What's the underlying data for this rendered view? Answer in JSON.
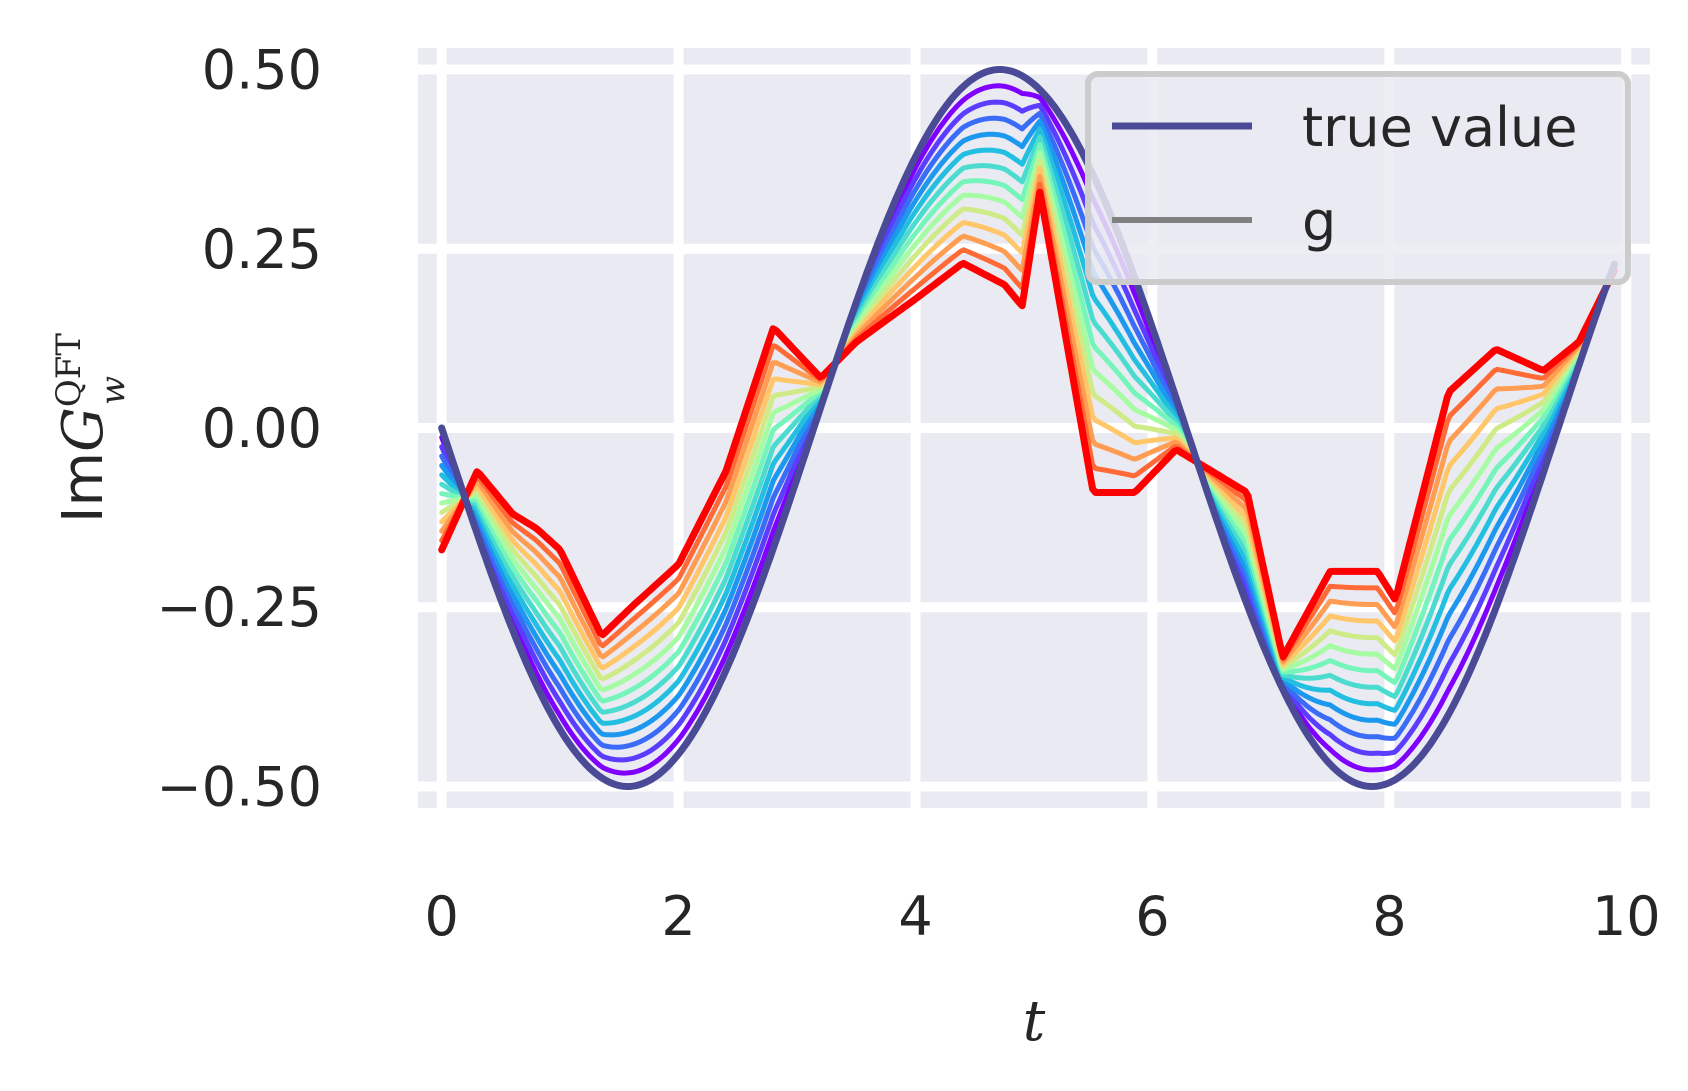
{
  "chart_data": {
    "type": "line",
    "xlabel": "t",
    "ylabel": {
      "prefix": "Im",
      "symbol": "G",
      "superscript": "QFT",
      "subscript": "w"
    },
    "xlim": [
      -0.2,
      10.2
    ],
    "ylim": [
      -0.53,
      0.53
    ],
    "xticks": [
      "0",
      "2",
      "4",
      "6",
      "8",
      "10"
    ],
    "xtick_values": [
      0,
      2,
      4,
      6,
      8,
      10
    ],
    "yticks": [
      "0.50",
      "0.25",
      "0.00",
      "−0.25",
      "−0.50"
    ],
    "ytick_values": [
      0.5,
      0.25,
      0.0,
      -0.25,
      -0.5
    ],
    "grid": true,
    "legend_position": "top-right",
    "legend": [
      {
        "label": "true value",
        "color": "#4a4a96"
      },
      {
        "label": "g",
        "color": "#808080"
      }
    ],
    "colors": {
      "background": "#eaeaf2",
      "grid": "#ffffff",
      "true_value": "#4a4a96",
      "g_series": [
        "#7f00ff",
        "#5a3dfe",
        "#3b6cf8",
        "#1c98ee",
        "#22bfe0",
        "#4bdccf",
        "#76f5bb",
        "#a6fca3",
        "#cfeb88",
        "#ffc76a",
        "#ff9d52",
        "#ff6a36",
        "#ff0000"
      ]
    },
    "true_value": {
      "name": "true value",
      "function": "-0.5*sin(t)",
      "t_range": [
        0,
        9.9
      ]
    },
    "series": [
      {
        "name": "g",
        "x": [
          0,
          0.3,
          0.6,
          0.8,
          1.0,
          1.35,
          1.6,
          2.0,
          2.4,
          2.8,
          3.2,
          3.5,
          4.0,
          4.4,
          4.75,
          4.9,
          5.05,
          5.5,
          5.85,
          6.2,
          6.6,
          6.8,
          7.1,
          7.5,
          7.9,
          8.05,
          8.5,
          8.9,
          9.3,
          9.6,
          9.9
        ],
        "y": [
          -0.17,
          -0.06,
          -0.12,
          -0.14,
          -0.17,
          -0.29,
          -0.25,
          -0.19,
          -0.06,
          0.14,
          0.07,
          0.12,
          0.18,
          0.23,
          0.2,
          0.17,
          0.33,
          -0.09,
          -0.09,
          -0.03,
          -0.07,
          -0.09,
          -0.32,
          -0.2,
          -0.2,
          -0.24,
          0.05,
          0.11,
          0.08,
          0.12,
          0.22
        ]
      }
    ],
    "interpolation": {
      "curves": 13,
      "note": "curves blend from true value (violet) to g (red)"
    }
  }
}
